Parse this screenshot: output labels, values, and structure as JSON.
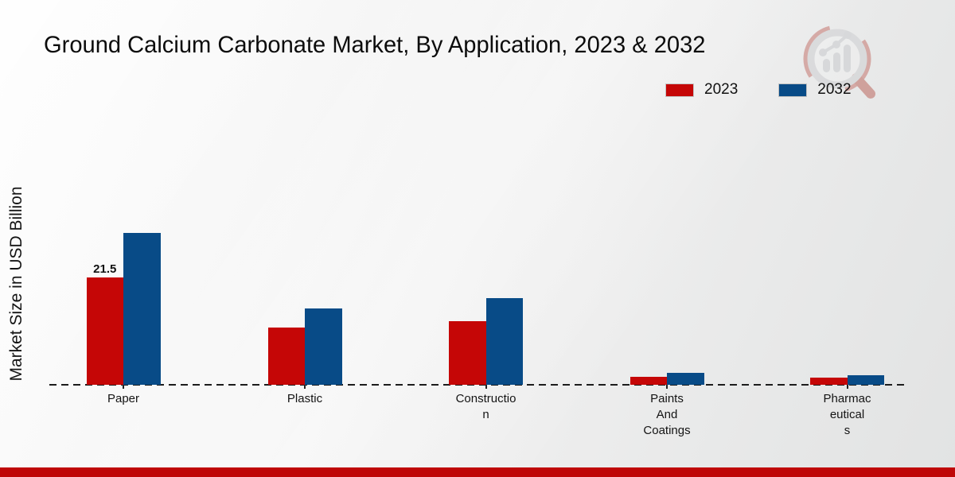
{
  "chart": {
    "title": "Ground Calcium Carbonate Market, By Application, 2023 & 2032",
    "ylabel": "Market Size in USD Billion"
  },
  "colors": {
    "series_2023": "#c50606",
    "series_2032": "#084b87",
    "baseline": "#1c1c1c",
    "footer_accent_bar": "#bf0707"
  },
  "watermark_icon": "market-research-magnifier-logo",
  "chart_data": {
    "type": "bar",
    "title": "Ground Calcium Carbonate Market, By Application, 2023 & 2032",
    "xlabel": "",
    "ylabel": "Market Size in USD Billion",
    "categories": [
      "Paper",
      "Plastic",
      "Construction",
      "Paints And Coatings",
      "Pharmaceuticals"
    ],
    "category_label_lines": [
      [
        "Paper"
      ],
      [
        "Plastic"
      ],
      [
        "Constructio",
        "n"
      ],
      [
        "Paints",
        "And",
        "Coatings"
      ],
      [
        "Pharmac",
        "eutical",
        "s"
      ]
    ],
    "series": [
      {
        "name": "2023",
        "color": "#c50606",
        "values": [
          21.5,
          11.5,
          12.7,
          1.6,
          1.5
        ]
      },
      {
        "name": "2032",
        "color": "#084b87",
        "values": [
          30.4,
          15.3,
          17.4,
          2.4,
          1.9
        ]
      }
    ],
    "annotations": [
      {
        "series": "2023",
        "category": "Paper",
        "text": "21.5"
      }
    ],
    "ylim": [
      0,
      32
    ],
    "grid": false,
    "y_axis_ticks_visible": false,
    "baseline_style": "dashed",
    "legend_position": "top-right"
  }
}
